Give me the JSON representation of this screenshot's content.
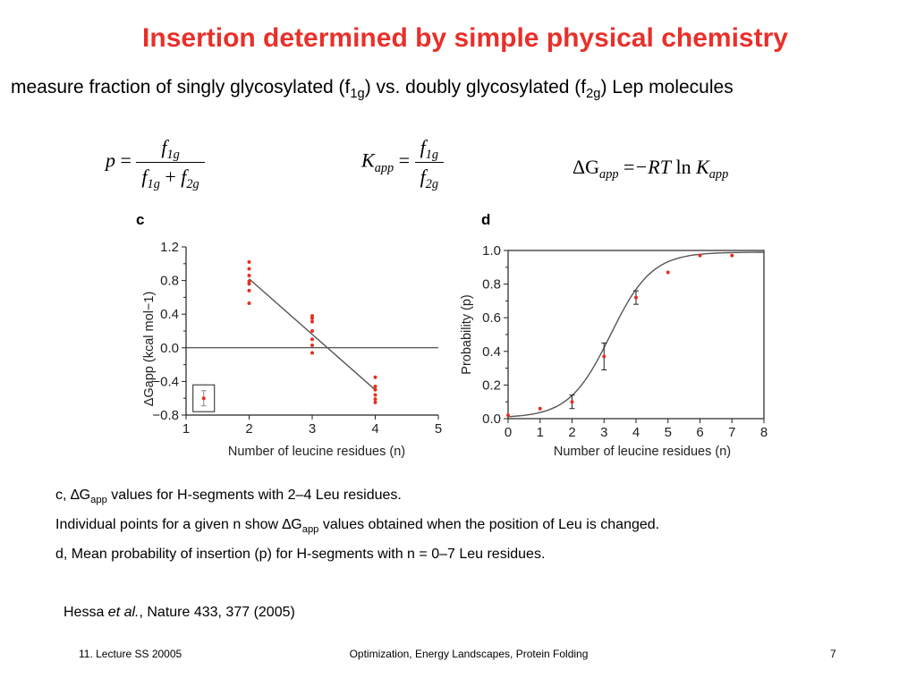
{
  "slide": {
    "title": "Insertion determined by simple physical chemistry",
    "subtitle": {
      "pre": "measure fraction of singly glycosylated (f",
      "sub1": "1g",
      "mid": ") vs. doubly glycosylated (f",
      "sub2": "2g",
      "post": ") Lep molecules"
    },
    "equations": {
      "p_lhs": "p",
      "ratio_lhs": "K",
      "ratio_lhs_sub": "app",
      "dg": "ΔG",
      "dg_sub": "app",
      "rt": "−RT",
      "ln": "ln",
      "k": "K",
      "k_sub": "app",
      "equals": "=",
      "plus": "+",
      "f": "f",
      "sub_1g": "1g",
      "sub_2g": "2g"
    },
    "caption": {
      "line1_pre": "c, ∆G",
      "line1_sub": "app",
      "line1_post": " values for H-segments with 2–4 Leu residues.",
      "line2_pre": "Individual points for a given n show ∆G",
      "line2_sub": "app",
      "line2_post": " values obtained when the position of Leu is changed.",
      "line3": "d, Mean probability of insertion (p) for H-segments with n = 0–7 Leu residues."
    },
    "reference": {
      "authors": "Hessa ",
      "etal": "et al.",
      "journal": ", Nature 433, 377 (2005)"
    },
    "footer": {
      "left": "11. Lecture SS 20005",
      "center": "Optimization, Energy Landscapes, Protein Folding",
      "right": "7"
    }
  },
  "chart_data": [
    {
      "panel": "c",
      "type": "scatter",
      "xlabel": "Number of leucine residues (n)",
      "ylabel": "ΔGapp (kcal mol−1)",
      "xlim": [
        1,
        5
      ],
      "ylim": [
        -0.8,
        1.2
      ],
      "xticks": [
        "1",
        "2",
        "3",
        "4",
        "5"
      ],
      "yticks": [
        "1.2",
        "0.8",
        "0.4",
        "0.0",
        "−0.4",
        "−0.8"
      ],
      "points": [
        {
          "x": 2,
          "y": 1.02
        },
        {
          "x": 2,
          "y": 0.94
        },
        {
          "x": 2,
          "y": 0.86
        },
        {
          "x": 2,
          "y": 0.79
        },
        {
          "x": 2,
          "y": 0.76
        },
        {
          "x": 2,
          "y": 0.68
        },
        {
          "x": 2,
          "y": 0.53
        },
        {
          "x": 3,
          "y": 0.38
        },
        {
          "x": 3,
          "y": 0.35
        },
        {
          "x": 3,
          "y": 0.31
        },
        {
          "x": 3,
          "y": 0.2
        },
        {
          "x": 3,
          "y": 0.1
        },
        {
          "x": 3,
          "y": 0.03
        },
        {
          "x": 3,
          "y": -0.06
        },
        {
          "x": 4,
          "y": -0.35
        },
        {
          "x": 4,
          "y": -0.46
        },
        {
          "x": 4,
          "y": -0.5
        },
        {
          "x": 4,
          "y": -0.56
        },
        {
          "x": 4,
          "y": -0.61
        },
        {
          "x": 4,
          "y": -0.65
        }
      ],
      "fit_line": [
        {
          "x": 2,
          "y": 0.82
        },
        {
          "x": 4,
          "y": -0.5
        }
      ],
      "error_bar_legend": {
        "x": 1.28,
        "y": -0.6,
        "err": 0.09
      },
      "colors": {
        "points": "#e53020",
        "line": "#555555",
        "axes": "#222222"
      }
    },
    {
      "panel": "d",
      "type": "scatter",
      "xlabel": "Number of leucine residues (n)",
      "ylabel": "Probability (p)",
      "xlim": [
        0,
        8
      ],
      "ylim": [
        0,
        1.0
      ],
      "xticks": [
        "0",
        "1",
        "2",
        "3",
        "4",
        "5",
        "6",
        "7",
        "8"
      ],
      "yticks": [
        "1.0",
        "0.8",
        "0.6",
        "0.4",
        "0.2",
        "0.0"
      ],
      "points": [
        {
          "x": 0,
          "y": 0.02,
          "err": 0
        },
        {
          "x": 1,
          "y": 0.06,
          "err": 0
        },
        {
          "x": 2,
          "y": 0.1,
          "err": 0.04
        },
        {
          "x": 3,
          "y": 0.37,
          "err": 0.08
        },
        {
          "x": 4,
          "y": 0.72,
          "err": 0.04
        },
        {
          "x": 5,
          "y": 0.87,
          "err": 0
        },
        {
          "x": 6,
          "y": 0.97,
          "err": 0
        },
        {
          "x": 7,
          "y": 0.97,
          "err": 0
        }
      ],
      "fit_curve": "sigmoid",
      "colors": {
        "points": "#e53020",
        "line": "#555555",
        "axes": "#222222"
      }
    }
  ]
}
